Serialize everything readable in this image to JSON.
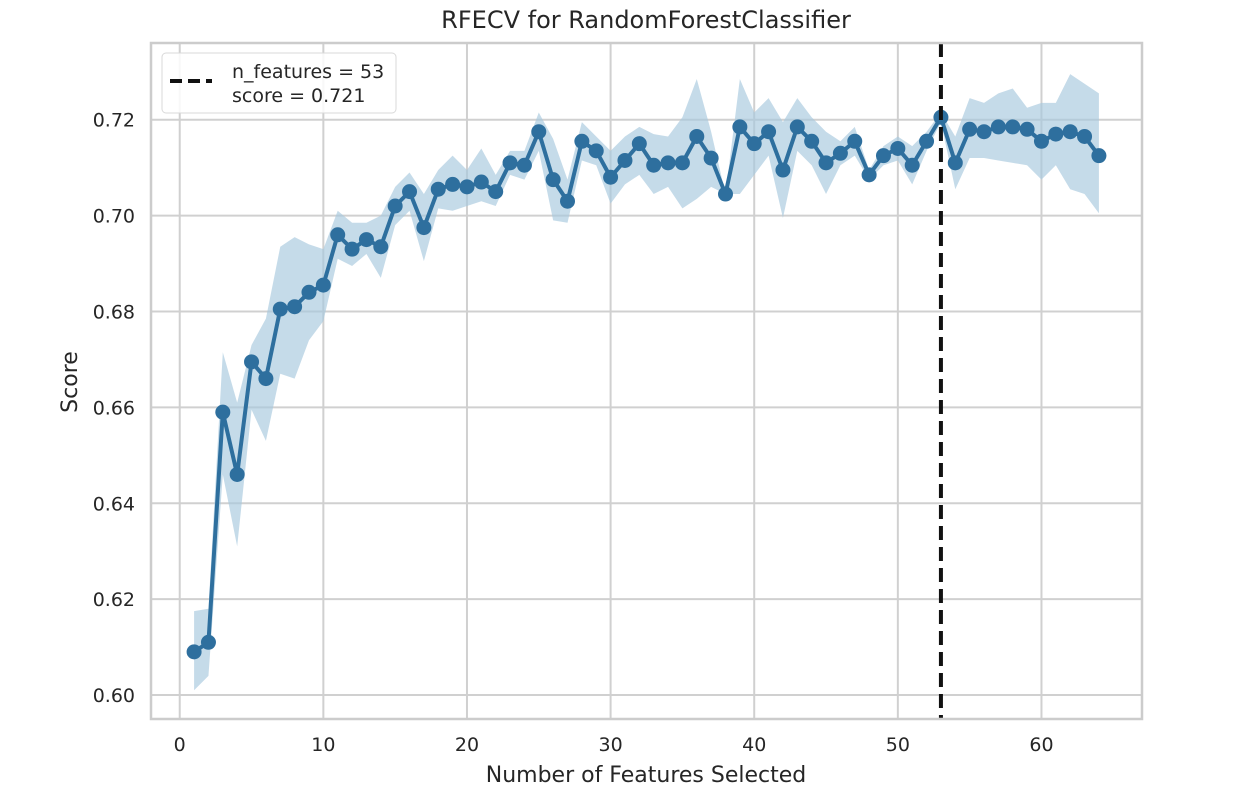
{
  "chart_data": {
    "type": "line",
    "title": "RFECV for RandomForestClassifier",
    "xlabel": "Number of Features Selected",
    "ylabel": "Score",
    "xlim": [
      -2,
      67
    ],
    "ylim": [
      0.595,
      0.736
    ],
    "x_ticks": [
      0,
      10,
      20,
      30,
      40,
      50,
      60
    ],
    "y_ticks": [
      0.6,
      0.62,
      0.64,
      0.66,
      0.68,
      0.7,
      0.72
    ],
    "x_tick_labels": [
      "0",
      "10",
      "20",
      "30",
      "40",
      "50",
      "60"
    ],
    "y_tick_labels": [
      "0.60",
      "0.62",
      "0.64",
      "0.66",
      "0.68",
      "0.70",
      "0.72"
    ],
    "grid": true,
    "legend_position": "top-left",
    "legend": {
      "line1": "n_features = 53",
      "line2": "score = 0.721"
    },
    "optimal_n_features": 53,
    "colors": {
      "line": "#2e6f9e",
      "band": "#a6c8dd",
      "vline": "#111111",
      "grid": "#d0d0d0",
      "axis": "#cccccc"
    },
    "series": [
      {
        "x": [
          1,
          2,
          3,
          4,
          5,
          6,
          7,
          8,
          9,
          10,
          11,
          12,
          13,
          14,
          15,
          16,
          17,
          18,
          19,
          20,
          21,
          22,
          23,
          24,
          25,
          26,
          27,
          28,
          29,
          30,
          31,
          32,
          33,
          34,
          35,
          36,
          37,
          38,
          39,
          40,
          41,
          42,
          43,
          44,
          45,
          46,
          47,
          48,
          49,
          50,
          51,
          52,
          53,
          54,
          55,
          56,
          57,
          58,
          59,
          60,
          61,
          62,
          63,
          64
        ],
        "values": [
          0.609,
          0.611,
          0.659,
          0.646,
          0.6695,
          0.666,
          0.6805,
          0.681,
          0.684,
          0.6855,
          0.696,
          0.693,
          0.695,
          0.6935,
          0.702,
          0.705,
          0.6975,
          0.7055,
          0.7065,
          0.706,
          0.707,
          0.705,
          0.711,
          0.7105,
          0.7175,
          0.7075,
          0.703,
          0.7155,
          0.7135,
          0.708,
          0.7115,
          0.715,
          0.7105,
          0.711,
          0.711,
          0.7165,
          0.712,
          0.7045,
          0.7185,
          0.715,
          0.7175,
          0.7095,
          0.7185,
          0.7155,
          0.711,
          0.713,
          0.7155,
          0.7085,
          0.7125,
          0.714,
          0.7105,
          0.7155,
          0.7205,
          0.711,
          0.718,
          0.7175,
          0.7185,
          0.7185,
          0.718,
          0.7155,
          0.717,
          0.7175,
          0.7165,
          0.7125
        ],
        "lower": [
          0.601,
          0.604,
          0.646,
          0.631,
          0.6595,
          0.653,
          0.667,
          0.666,
          0.674,
          0.678,
          0.691,
          0.6895,
          0.692,
          0.687,
          0.698,
          0.701,
          0.6905,
          0.7015,
          0.701,
          0.702,
          0.703,
          0.702,
          0.7085,
          0.7075,
          0.7135,
          0.699,
          0.6985,
          0.7115,
          0.7105,
          0.7025,
          0.7065,
          0.7085,
          0.7045,
          0.706,
          0.7015,
          0.7035,
          0.706,
          0.7045,
          0.7045,
          0.7085,
          0.7125,
          0.6995,
          0.7135,
          0.7105,
          0.7045,
          0.7105,
          0.7125,
          0.7075,
          0.7105,
          0.7115,
          0.7065,
          0.7135,
          0.7195,
          0.7055,
          0.712,
          0.712,
          0.7115,
          0.711,
          0.7105,
          0.7075,
          0.7105,
          0.7055,
          0.7045,
          0.7005
        ],
        "upper": [
          0.6175,
          0.618,
          0.6715,
          0.661,
          0.673,
          0.6785,
          0.6935,
          0.6955,
          0.694,
          0.693,
          0.701,
          0.6985,
          0.6985,
          0.7,
          0.706,
          0.709,
          0.7045,
          0.7095,
          0.7125,
          0.7095,
          0.714,
          0.7085,
          0.7135,
          0.7135,
          0.7215,
          0.716,
          0.7075,
          0.7195,
          0.7165,
          0.7135,
          0.7165,
          0.7185,
          0.717,
          0.7165,
          0.7205,
          0.7285,
          0.7175,
          0.7045,
          0.7285,
          0.7215,
          0.7245,
          0.7195,
          0.7245,
          0.7205,
          0.7175,
          0.7155,
          0.7185,
          0.7095,
          0.7145,
          0.7165,
          0.7145,
          0.7175,
          0.7215,
          0.7165,
          0.7245,
          0.7235,
          0.7255,
          0.7265,
          0.7225,
          0.7235,
          0.7235,
          0.7295,
          0.7275,
          0.7255
        ]
      }
    ]
  }
}
